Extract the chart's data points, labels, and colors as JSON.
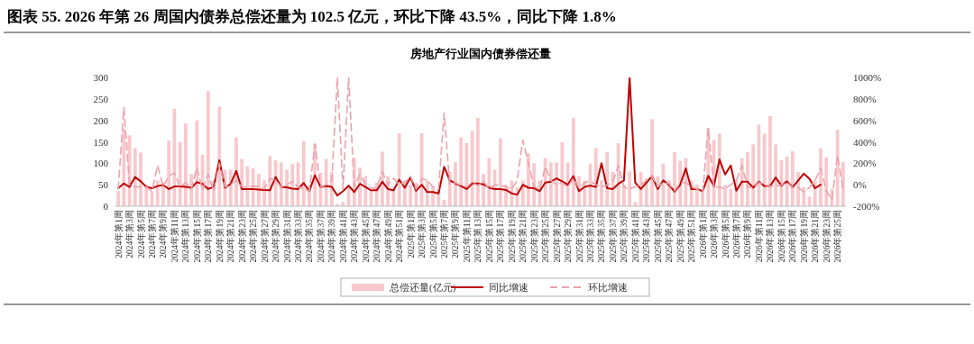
{
  "chart_data": {
    "type": "bar",
    "title": "图表 55. 2026 年第 26 周国内债券总偿还量为 102.5 亿元，环比下降 43.5%，同比下降 1.8%",
    "subtitle": "房地产行业国内债券偿还量",
    "categories": [
      "2024年第1周",
      null,
      "2024年第3周",
      null,
      "2024年第5周",
      null,
      "2024年第7周",
      null,
      "2024年第9周",
      null,
      "2024年第11周",
      null,
      "2024年第13周",
      null,
      "2024年第15周",
      null,
      "2024年第17周",
      null,
      "2024年第19周",
      null,
      "2024年第21周",
      null,
      "2024年第23周",
      null,
      "2024年第25周",
      null,
      "2024年第27周",
      null,
      "2024年第29周",
      null,
      "2024年第31周",
      null,
      "2024年第33周",
      null,
      "2024年第35周",
      null,
      "2024年第37周",
      null,
      "2024年第39周",
      null,
      "2024年第41周",
      null,
      "2024年第43周",
      null,
      "2024年第45周",
      null,
      "2024年第47周",
      null,
      "2024年第49周",
      null,
      "2024年第51周",
      null,
      "2025年第1周",
      null,
      "2025年第3周",
      null,
      "2025年第5周",
      null,
      "2025年第7周",
      null,
      "2025年第9周",
      null,
      "2025年第11周",
      null,
      "2025年第13周",
      null,
      "2025年第15周",
      null,
      "2025年第17周",
      null,
      "2025年第19周",
      null,
      "2025年第21周",
      null,
      "2025年第23周",
      null,
      "2025年第25周",
      null,
      "2025年第27周",
      null,
      "2025年第29周",
      null,
      "2025年第31周",
      null,
      "2025年第33周",
      null,
      "2025年第35周",
      null,
      "2025年第37周",
      null,
      "2025年第39周",
      null,
      "2025年第41周",
      null,
      "2025年第43周",
      null,
      "2025年第45周",
      null,
      "2025年第47周",
      null,
      "2025年第49周",
      null,
      "2025年第51周",
      null,
      "2026年第1周",
      null,
      "2026年第3周",
      null,
      "2026年第5周",
      null,
      "2026年第7周",
      null,
      "2026年第9周",
      null,
      "2026年第11周",
      null,
      "2026年第13周",
      null,
      "2026年第15周",
      null,
      "2026年第17周",
      null,
      "2026年第19周",
      null,
      "2026年第21周",
      null,
      "2026年第23周",
      null,
      "2026年第25周",
      null
    ],
    "series": [
      {
        "name": "总偿还量(亿元)",
        "color": "#f8c8cc",
        "values": [
          35,
          180,
          165,
          135,
          125,
          50,
          35,
          60,
          55,
          153,
          227,
          150,
          193,
          75,
          200,
          120,
          268,
          60,
          232,
          85,
          85,
          160,
          110,
          93,
          88,
          75,
          60,
          117,
          107,
          102,
          85,
          98,
          102,
          152,
          50,
          145,
          78,
          110,
          80,
          5,
          10,
          45,
          113,
          90,
          70,
          45,
          55,
          127,
          70,
          45,
          170,
          60,
          50,
          55,
          170,
          60,
          45,
          40,
          15,
          80,
          102,
          160,
          147,
          175,
          206,
          75,
          112,
          85,
          158,
          50,
          60,
          45,
          60,
          123,
          100,
          60,
          112,
          102,
          102,
          149,
          102,
          206,
          70,
          60,
          99,
          135,
          60,
          126,
          80,
          147,
          50,
          81,
          10,
          80,
          65,
          203,
          70,
          99,
          60,
          126,
          106,
          112,
          60,
          50,
          30,
          182,
          154,
          169,
          50,
          40,
          60,
          112,
          126,
          144,
          190,
          169,
          210,
          144,
          107,
          116,
          128,
          80,
          45,
          22,
          60,
          135,
          114,
          40,
          178,
          102.5
        ]
      },
      {
        "name": "同比增速",
        "type": "line",
        "axis": "y2",
        "line_style": "solid",
        "color": "#c00000",
        "values": [
          -32,
          12,
          -20,
          72,
          32,
          -20,
          -32,
          -12,
          0,
          -40,
          -16,
          -16,
          -20,
          -28,
          24,
          8,
          -40,
          -20,
          228,
          -28,
          8,
          128,
          -40,
          -40,
          -40,
          -44,
          -48,
          -52,
          72,
          -20,
          -24,
          -36,
          -40,
          16,
          -60,
          88,
          -20,
          -12,
          -20,
          -100,
          -60,
          -8,
          -68,
          8,
          -20,
          -52,
          -52,
          28,
          -40,
          -52,
          48,
          -28,
          68,
          -56,
          0,
          -68,
          -68,
          -80,
          168,
          40,
          12,
          -12,
          -40,
          12,
          12,
          4,
          -28,
          -40,
          -40,
          -48,
          -80,
          -92,
          0,
          -28,
          -32,
          -60,
          20,
          28,
          60,
          32,
          0,
          80,
          -60,
          -20,
          -8,
          -20,
          200,
          -32,
          -40,
          8,
          40,
          1000,
          20,
          -40,
          20,
          80,
          -40,
          40,
          0,
          -64,
          0,
          152,
          -40,
          -40,
          -60,
          84,
          -12,
          236,
          96,
          180,
          -56,
          28,
          28,
          -28,
          28,
          -12,
          -12,
          68,
          -8,
          32,
          -24,
          40,
          104,
          56,
          -32,
          0,
          null,
          null,
          null,
          null
        ]
      },
      {
        "name": "环比增速",
        "type": "line",
        "axis": "y2",
        "line_style": "dashed",
        "color": "#e8a4ac",
        "values": [
          -40,
          720,
          0,
          -20,
          -20,
          -20,
          -60,
          180,
          -20,
          80,
          112,
          -20,
          20,
          -40,
          160,
          -48,
          100,
          -60,
          200,
          -20,
          0,
          40,
          -20,
          -20,
          -12,
          -20,
          -40,
          60,
          40,
          -20,
          0,
          32,
          -20,
          -40,
          -60,
          380,
          -20,
          0,
          40,
          1000,
          -40,
          1000,
          -20,
          100,
          0,
          -40,
          -20,
          120,
          0,
          60,
          0,
          20,
          80,
          -40,
          60,
          40,
          -20,
          -40,
          668,
          0,
          20,
          -8,
          -20,
          20,
          -8,
          32,
          -40,
          0,
          -8,
          -20,
          -40,
          40,
          416,
          200,
          -20,
          -40,
          168,
          40,
          0,
          20,
          -20,
          60,
          -32,
          20,
          32,
          0,
          -20,
          0,
          20,
          180,
          -20,
          -40,
          -20,
          0,
          40,
          80,
          -20,
          20,
          12,
          -56,
          20,
          20,
          -20,
          -40,
          -80,
          528,
          -28,
          -20,
          -40,
          0,
          40,
          180,
          -20,
          -28,
          20,
          0,
          -12,
          -12,
          0,
          20,
          -24,
          -24,
          -64,
          -28,
          40,
          152,
          -56,
          -140,
          276,
          -43.5
        ]
      }
    ],
    "ylim": [
      0,
      300
    ],
    "yticks": [
      0,
      50,
      100,
      150,
      200,
      250,
      300
    ],
    "y2lim": [
      -200,
      1000
    ],
    "y2ticks": [
      {
        "value": -200,
        "label": "-200%"
      },
      {
        "value": 0,
        "label": "0%"
      },
      {
        "value": 200,
        "label": "200%"
      },
      {
        "value": 400,
        "label": "400%"
      },
      {
        "value": 600,
        "label": "600%"
      },
      {
        "value": 800,
        "label": "800%"
      },
      {
        "value": 1000,
        "label": "1000%"
      }
    ],
    "grid": false,
    "legend": "bottom"
  }
}
